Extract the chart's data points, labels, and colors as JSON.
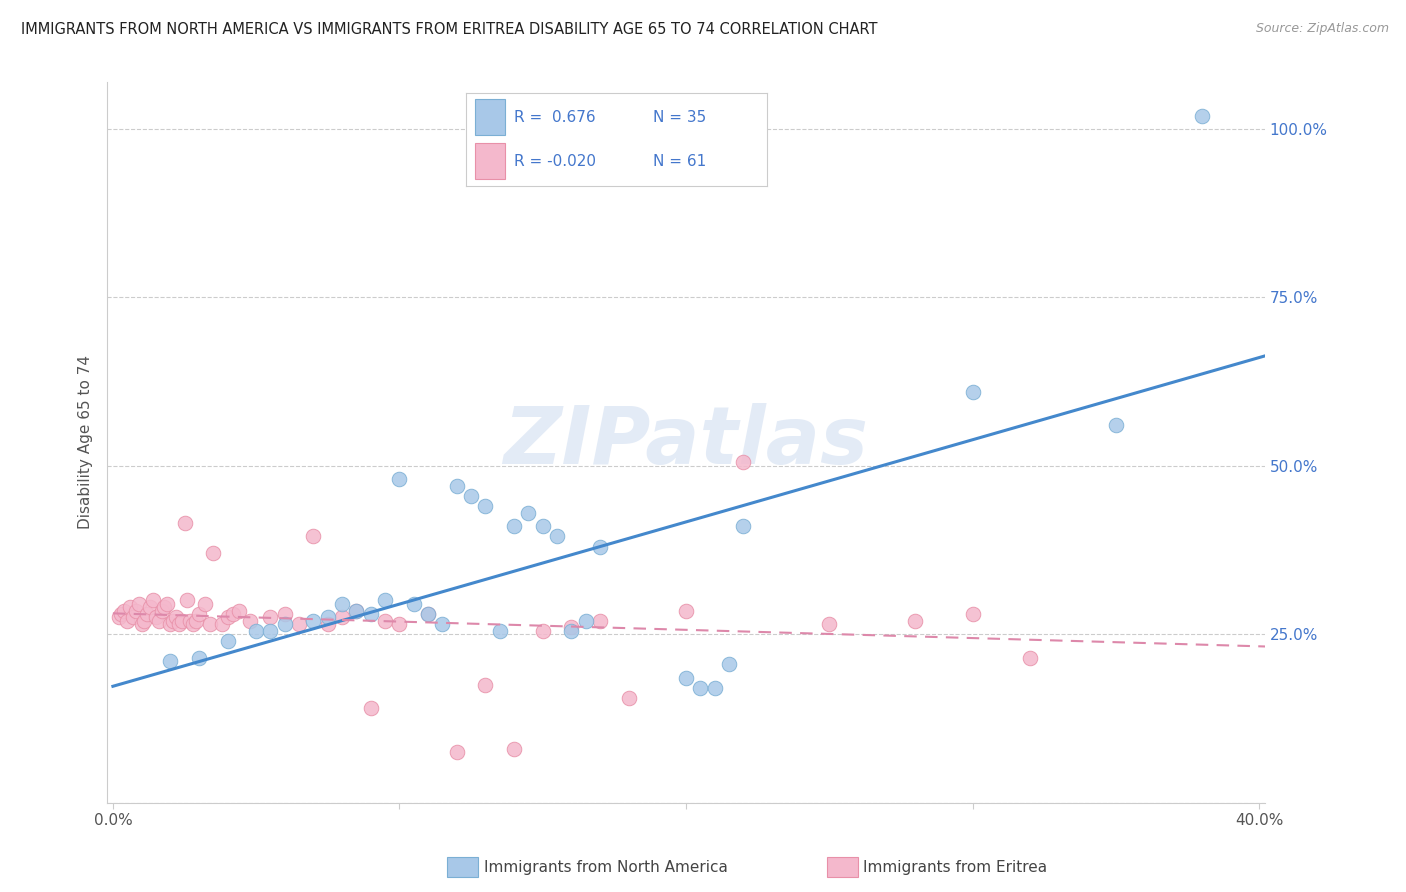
{
  "title": "IMMIGRANTS FROM NORTH AMERICA VS IMMIGRANTS FROM ERITREA DISABILITY AGE 65 TO 74 CORRELATION CHART",
  "source": "Source: ZipAtlas.com",
  "ylabel": "Disability Age 65 to 74",
  "xlim": [
    0.0,
    0.4
  ],
  "ylim": [
    0.0,
    1.05
  ],
  "blue_color": "#a8c8e8",
  "blue_edge": "#7bafd4",
  "pink_color": "#f4b8cc",
  "pink_edge": "#e890a8",
  "blue_line_color": "#4488cc",
  "pink_line_color": "#dd88aa",
  "text_blue": "#4477cc",
  "r_blue": 0.676,
  "n_blue": 35,
  "r_pink": -0.02,
  "n_pink": 61,
  "legend_label_blue": "Immigrants from North America",
  "legend_label_pink": "Immigrants from Eritrea",
  "watermark": "ZIPatlas",
  "blue_scatter_x": [
    0.02,
    0.03,
    0.04,
    0.05,
    0.055,
    0.06,
    0.07,
    0.075,
    0.08,
    0.085,
    0.09,
    0.095,
    0.1,
    0.105,
    0.11,
    0.115,
    0.12,
    0.125,
    0.13,
    0.135,
    0.14,
    0.145,
    0.15,
    0.155,
    0.16,
    0.165,
    0.17,
    0.2,
    0.205,
    0.21,
    0.215,
    0.22,
    0.3,
    0.35,
    0.38
  ],
  "blue_scatter_y": [
    0.21,
    0.215,
    0.24,
    0.255,
    0.255,
    0.265,
    0.27,
    0.275,
    0.295,
    0.285,
    0.28,
    0.3,
    0.48,
    0.295,
    0.28,
    0.265,
    0.47,
    0.455,
    0.44,
    0.255,
    0.41,
    0.43,
    0.41,
    0.395,
    0.255,
    0.27,
    0.38,
    0.185,
    0.17,
    0.17,
    0.205,
    0.41,
    0.61,
    0.56,
    1.02
  ],
  "pink_scatter_x": [
    0.002,
    0.003,
    0.004,
    0.005,
    0.006,
    0.007,
    0.008,
    0.009,
    0.01,
    0.011,
    0.012,
    0.013,
    0.014,
    0.015,
    0.016,
    0.017,
    0.018,
    0.019,
    0.02,
    0.021,
    0.022,
    0.023,
    0.024,
    0.025,
    0.026,
    0.027,
    0.028,
    0.029,
    0.03,
    0.032,
    0.034,
    0.035,
    0.038,
    0.04,
    0.042,
    0.044,
    0.048,
    0.055,
    0.06,
    0.065,
    0.07,
    0.075,
    0.08,
    0.085,
    0.09,
    0.095,
    0.1,
    0.11,
    0.12,
    0.13,
    0.14,
    0.15,
    0.16,
    0.17,
    0.18,
    0.2,
    0.22,
    0.25,
    0.28,
    0.3,
    0.32
  ],
  "pink_scatter_y": [
    0.275,
    0.28,
    0.285,
    0.27,
    0.29,
    0.275,
    0.285,
    0.295,
    0.265,
    0.27,
    0.28,
    0.29,
    0.3,
    0.275,
    0.27,
    0.285,
    0.29,
    0.295,
    0.265,
    0.27,
    0.275,
    0.265,
    0.27,
    0.415,
    0.3,
    0.27,
    0.265,
    0.27,
    0.28,
    0.295,
    0.265,
    0.37,
    0.265,
    0.275,
    0.28,
    0.285,
    0.27,
    0.275,
    0.28,
    0.265,
    0.395,
    0.265,
    0.275,
    0.285,
    0.14,
    0.27,
    0.265,
    0.28,
    0.075,
    0.175,
    0.08,
    0.255,
    0.26,
    0.27,
    0.155,
    0.285,
    0.505,
    0.265,
    0.27,
    0.28,
    0.215
  ]
}
